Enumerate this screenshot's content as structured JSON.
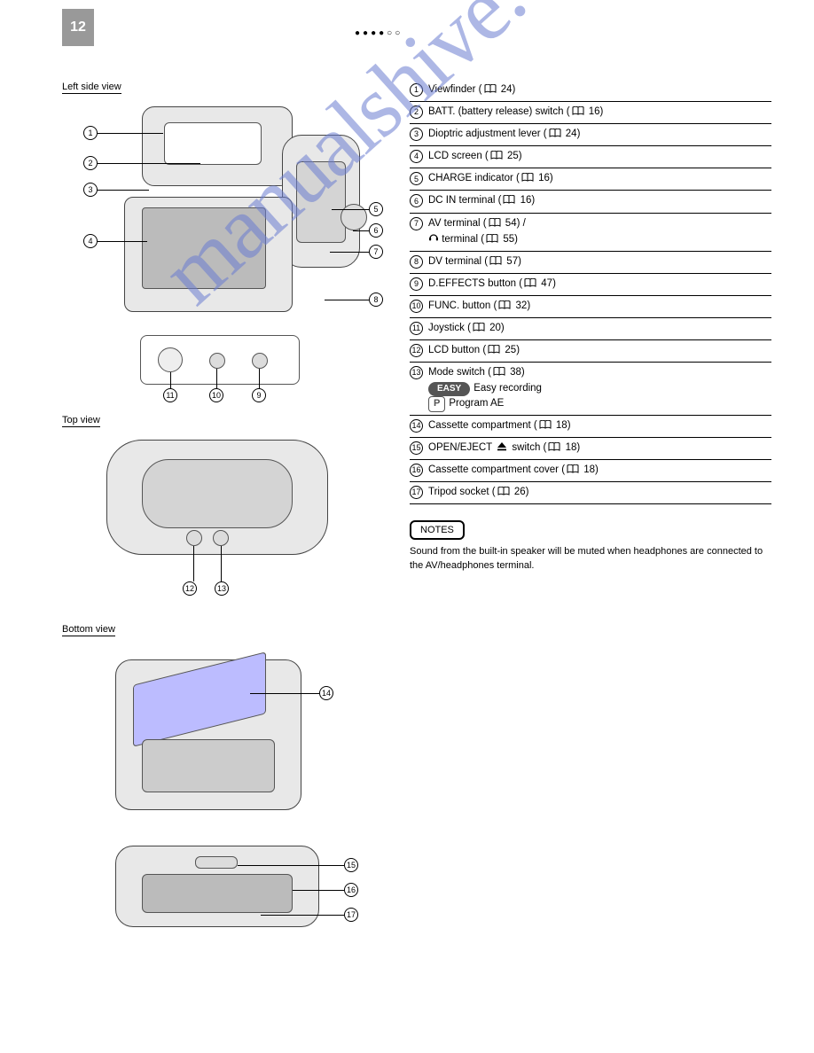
{
  "page": {
    "number": "12",
    "header_dots": "●●●●○○"
  },
  "watermark": "manualshive.com",
  "views": {
    "left_side": "Left side view",
    "top": "Top view",
    "bottom": "Bottom view"
  },
  "items": [
    {
      "n": "1",
      "text_before": "Viewfinder (",
      "page": "24",
      "text_after": ")"
    },
    {
      "n": "2",
      "text_before": "BATT. (battery release) switch (",
      "page": "16",
      "text_after": ")"
    },
    {
      "n": "3",
      "text_before": "Dioptric adjustment lever (",
      "page": "24",
      "text_after": ")"
    },
    {
      "n": "4",
      "text_before": "LCD screen (",
      "page": "25",
      "text_after": ")"
    },
    {
      "n": "5",
      "text_before": "CHARGE indicator (",
      "page": "16",
      "text_after": ")"
    },
    {
      "n": "6",
      "text_before": "DC IN terminal (",
      "page": "16",
      "text_after": ")"
    },
    {
      "n": "7",
      "text_before": "AV terminal (",
      "page": "54",
      "text_after": ") / ",
      "extra_before": "  terminal (",
      "extra_page": "55",
      "extra_after": ")",
      "symbol": "headphone"
    },
    {
      "n": "8",
      "text_before": "DV terminal (",
      "page": "57",
      "text_after": ")"
    },
    {
      "n": "9",
      "text_before": "D.EFFECTS button (",
      "page": "47",
      "text_after": ")"
    },
    {
      "n": "10",
      "text_before": "FUNC. button (",
      "page": "32",
      "text_after": ")"
    },
    {
      "n": "11",
      "text_before": "Joystick (",
      "page": "20",
      "text_after": ")"
    },
    {
      "n": "12",
      "text_before": "LCD button (",
      "page": "25",
      "text_after": ")"
    },
    {
      "n": "13",
      "text_before": "Mode switch (",
      "page": "38",
      "text_after": ")",
      "line2a_badge": "EASY",
      "line2a_text": "Easy recording",
      "line2b_badge": "P",
      "line2b_text": "Program AE"
    },
    {
      "n": "14",
      "text_before": "Cassette compartment (",
      "page": "18",
      "text_after": ")"
    },
    {
      "n": "15",
      "text_before": "OPEN/EJECT ",
      "eject": true,
      "mid": " switch (",
      "page": "18",
      "text_after": ")"
    },
    {
      "n": "16",
      "text_before": "Cassette compartment cover (",
      "page": "18",
      "text_after": ")"
    },
    {
      "n": "17",
      "text_before": "Tripod socket (",
      "page": "26",
      "text_after": ")"
    }
  ],
  "note": {
    "heading": "NOTES",
    "body": "Sound from the built-in speaker will be muted when headphones are connected to the AV/headphones terminal."
  },
  "icons": {
    "book_svg": "<svg width='14' height='11' viewBox='0 0 14 11'><path d='M1 1 Q4 -0.5 7 1 Q10 -0.5 13 1 L13 9 Q10 7.5 7 9 Q4 7.5 1 9 Z M7 1 L7 9' fill='none' stroke='black' stroke-width='1'/></svg>",
    "eject_svg": "<svg width='12' height='11' viewBox='0 0 12 11'><path d='M6 1 L11 7 L1 7 Z' fill='black'/><rect x='1' y='8.5' width='10' height='1.8' fill='black'/></svg>",
    "headphone_svg": "<svg width='12' height='11' viewBox='0 0 12 11'><path d='M2 7 A4 4 0 0 1 10 7' fill='none' stroke='black' stroke-width='1.3'/><rect x='1' y='6' width='2.2' height='3.5' rx='1' fill='black'/><rect x='8.8' y='6' width='2.2' height='3.5' rx='1' fill='black'/></svg>"
  },
  "colors": {
    "watermark": "#6b7dd1",
    "pagebox_bg": "#999999",
    "body_shape": "#e8e8e8"
  }
}
